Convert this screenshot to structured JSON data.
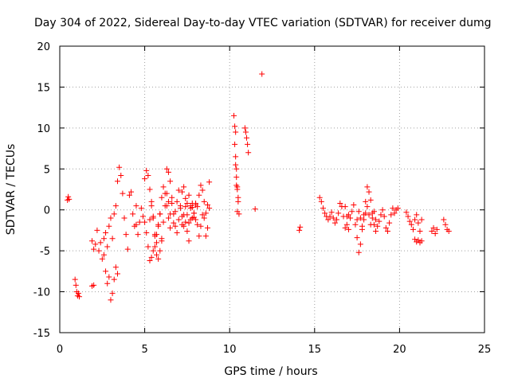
{
  "chart_data": {
    "type": "scatter",
    "title": "Day 304 of 2022, Sidereal Day-to-day VTEC variation (SDTVAR) for receiver dumg",
    "xlabel": "GPS time / hours",
    "ylabel": "SDTVAR / TECUs",
    "xlim": [
      0,
      25
    ],
    "ylim": [
      -15,
      20
    ],
    "xticks": [
      0,
      5,
      10,
      15,
      20,
      25
    ],
    "yticks": [
      -15,
      -10,
      -5,
      0,
      5,
      10,
      15,
      20
    ],
    "xtick_labels": [
      "0",
      "5",
      "10",
      "15",
      "20",
      "25"
    ],
    "ytick_labels": [
      "-15",
      "-10",
      "-5",
      "0",
      "5",
      "10",
      "15",
      "20"
    ],
    "grid": true,
    "marker": "+",
    "series": [
      {
        "name": "SDTVAR",
        "color": "#ff0000",
        "segments": [
          {
            "x": [
              0.45,
              0.5,
              0.55
            ],
            "y": [
              1.2,
              1.6,
              1.3
            ]
          },
          {
            "x": [
              0.9,
              0.95,
              1.0,
              1.05,
              1.1,
              1.15
            ],
            "y": [
              -8.5,
              -9.2,
              -10.0,
              -10.5,
              -10.2,
              -10.6
            ]
          },
          {
            "x": [
              1.9,
              2.0
            ],
            "y": [
              -9.3,
              -9.2
            ]
          },
          {
            "x": [
              1.9,
              2.0,
              2.1,
              2.2,
              2.3,
              2.4,
              2.5,
              2.6,
              2.7,
              2.8,
              2.9,
              3.0,
              3.1,
              3.2,
              3.3,
              3.4
            ],
            "y": [
              -3.8,
              -4.8,
              -4.2,
              -2.5,
              -5.0,
              -4.0,
              -6.0,
              -5.5,
              -7.5,
              -9.0,
              -8.2,
              -11.0,
              -10.2,
              -8.5,
              -7.0,
              -7.8
            ]
          },
          {
            "x": [
              2.6,
              2.7,
              2.8,
              2.9,
              3.0,
              3.1,
              3.2,
              3.3,
              3.4,
              3.5,
              3.6,
              3.7,
              3.8,
              3.9,
              4.0,
              4.1,
              4.2,
              4.3,
              4.4,
              4.5
            ],
            "y": [
              -3.5,
              -2.8,
              -4.5,
              -2.0,
              -1.0,
              -3.5,
              -0.5,
              0.5,
              3.5,
              5.2,
              4.2,
              2.0,
              -1.0,
              -3.0,
              -4.8,
              1.8,
              2.2,
              -0.5,
              -2.0,
              0.5
            ]
          },
          {
            "x": [
              4.5,
              4.6,
              4.7,
              4.8,
              4.9,
              5.0,
              5.1,
              5.2,
              5.3,
              5.4,
              5.5,
              5.6,
              5.7,
              5.8,
              5.9,
              6.0
            ],
            "y": [
              -1.8,
              -3.0,
              -1.5,
              0.2,
              -0.8,
              -1.5,
              -2.8,
              -4.5,
              -1.2,
              0.5,
              -0.8,
              -3.2,
              -4.0,
              -2.0,
              -0.5,
              -3.5
            ]
          },
          {
            "x": [
              5.0,
              5.1,
              5.2,
              5.3,
              5.4,
              5.5,
              5.6,
              5.7,
              5.8,
              5.9,
              6.0,
              6.1,
              6.2,
              6.3,
              6.4
            ],
            "y": [
              3.8,
              4.8,
              4.2,
              2.5,
              1.0,
              -1.0,
              -3.0,
              -5.5,
              -6.0,
              -5.0,
              -3.8,
              -1.5,
              0.5,
              2.0,
              1.0
            ]
          },
          {
            "x": [
              5.3,
              5.4,
              5.5,
              5.6,
              5.7,
              5.8,
              5.9,
              6.0,
              6.1,
              6.2,
              6.3,
              6.4,
              6.5
            ],
            "y": [
              -6.2,
              -5.8,
              -5.0,
              -4.5,
              -3.0,
              -1.8,
              -0.5,
              1.5,
              2.8,
              2.0,
              0.5,
              -1.0,
              -2.2
            ]
          },
          {
            "x": [
              6.3,
              6.4,
              6.5,
              6.6,
              6.7,
              6.8,
              6.9,
              7.0,
              7.1,
              7.2,
              7.3,
              7.4,
              7.5,
              7.6,
              7.7,
              7.8,
              7.9,
              8.0
            ],
            "y": [
              5.0,
              4.6,
              3.5,
              1.5,
              -0.5,
              -2.0,
              -2.8,
              -1.2,
              0.5,
              -0.8,
              -2.0,
              -1.5,
              0.8,
              1.8,
              0.5,
              -1.0,
              -0.4,
              0.6
            ]
          },
          {
            "x": [
              6.5,
              6.6,
              6.7,
              6.8,
              6.9,
              7.0,
              7.1,
              7.2,
              7.3,
              7.4,
              7.5,
              7.6,
              7.7,
              7.8,
              7.9,
              8.0,
              8.1,
              8.2,
              8.3,
              8.4
            ],
            "y": [
              -0.5,
              0.8,
              -1.6,
              -0.2,
              1.0,
              2.4,
              0.2,
              -1.8,
              -0.6,
              0.4,
              -2.6,
              -3.8,
              -1.2,
              0.3,
              -0.9,
              0.8,
              -1.8,
              -3.2,
              -2.0,
              -0.6
            ]
          },
          {
            "x": [
              7.2,
              7.3,
              7.4,
              7.5,
              7.6,
              7.7,
              7.8,
              7.9,
              8.0,
              8.1,
              8.2,
              8.3,
              8.4,
              8.5,
              8.6,
              8.7,
              8.8
            ],
            "y": [
              2.2,
              2.8,
              1.4,
              -0.6,
              -1.6,
              0.2,
              0.8,
              -0.4,
              -1.2,
              0.4,
              1.8,
              3.0,
              2.4,
              1.0,
              -0.4,
              0.6,
              3.4
            ]
          },
          {
            "x": [
              8.5,
              8.6,
              8.7,
              8.8
            ],
            "y": [
              -1.0,
              -3.2,
              -2.2,
              0.2
            ]
          },
          {
            "x": [
              10.25,
              10.3,
              10.35,
              10.4,
              10.45,
              10.5,
              10.55
            ],
            "y": [
              11.5,
              10.2,
              6.5,
              4.0,
              2.5,
              1.0,
              -0.5
            ]
          },
          {
            "x": [
              10.3,
              10.35,
              10.4,
              10.45
            ],
            "y": [
              8.0,
              5.5,
              3.0,
              -0.2
            ]
          },
          {
            "x": [
              10.35,
              10.4,
              10.45,
              10.5
            ],
            "y": [
              9.5,
              5.0,
              2.8,
              1.5
            ]
          },
          {
            "x": [
              10.9,
              10.95,
              11.0,
              11.05,
              11.1
            ],
            "y": [
              10.0,
              9.5,
              8.8,
              8.0,
              7.0
            ]
          },
          {
            "x": [
              11.5
            ],
            "y": [
              0.1
            ]
          },
          {
            "x": [
              11.9
            ],
            "y": [
              16.6
            ]
          },
          {
            "x": [
              14.1,
              14.15
            ],
            "y": [
              -2.5,
              -2.1
            ]
          },
          {
            "x": [
              15.3,
              15.4,
              15.5,
              15.6,
              15.7,
              15.8,
              15.9,
              16.0,
              16.1,
              16.2,
              16.3,
              16.4,
              16.5,
              16.6,
              16.7,
              16.8,
              16.9,
              17.0
            ],
            "y": [
              1.5,
              1.0,
              0.2,
              -0.4,
              -0.8,
              -1.2,
              -0.8,
              -0.3,
              -1.0,
              -1.6,
              -1.2,
              -0.4,
              0.8,
              0.4,
              -0.8,
              -2.2,
              -1.8,
              -0.6
            ]
          },
          {
            "x": [
              16.8,
              16.9,
              17.0,
              17.1,
              17.2,
              17.3,
              17.4,
              17.5,
              17.6,
              17.7,
              17.8,
              17.9,
              18.0,
              18.1,
              18.2,
              18.3,
              18.4,
              18.5,
              18.6
            ],
            "y": [
              0.4,
              -0.8,
              -2.4,
              -1.0,
              -0.2,
              0.6,
              -1.8,
              -3.4,
              -5.2,
              -4.2,
              -2.4,
              -0.6,
              1.0,
              2.8,
              2.2,
              1.2,
              -0.4,
              -1.8,
              -2.6
            ]
          },
          {
            "x": [
              17.5,
              17.6,
              17.7,
              17.8,
              17.9,
              18.0,
              18.1,
              18.2,
              18.3,
              18.4,
              18.5,
              18.6,
              18.7,
              18.8,
              18.9,
              19.0,
              19.1,
              19.2,
              19.3,
              19.4,
              19.5,
              19.6,
              19.7,
              19.8,
              19.9
            ],
            "y": [
              -1.2,
              -0.2,
              -1.0,
              -2.0,
              -1.2,
              -0.4,
              0.4,
              -0.6,
              -1.8,
              -1.0,
              -0.2,
              -1.2,
              -2.0,
              -1.4,
              -0.6,
              0.0,
              -0.8,
              -2.2,
              -2.6,
              -1.6,
              -0.6,
              0.2,
              -0.4,
              0.0,
              0.2
            ]
          },
          {
            "x": [
              20.4,
              20.5,
              20.6,
              20.7,
              20.8,
              20.9,
              21.0,
              21.1,
              21.2,
              21.3
            ],
            "y": [
              -0.3,
              -0.8,
              -1.4,
              -1.8,
              -2.4,
              -1.2,
              -0.6,
              -1.6,
              -2.6,
              -1.2
            ]
          },
          {
            "x": [
              20.9,
              21.0,
              21.1,
              21.2,
              21.3
            ],
            "y": [
              -3.6,
              -3.9,
              -3.7,
              -4.0,
              -3.8
            ]
          },
          {
            "x": [
              21.9,
              22.0,
              22.1,
              22.2
            ],
            "y": [
              -2.6,
              -2.2,
              -2.9,
              -2.4
            ]
          },
          {
            "x": [
              22.6,
              22.7,
              22.8,
              22.9
            ],
            "y": [
              -1.2,
              -1.8,
              -2.4,
              -2.6
            ]
          }
        ]
      }
    ]
  }
}
